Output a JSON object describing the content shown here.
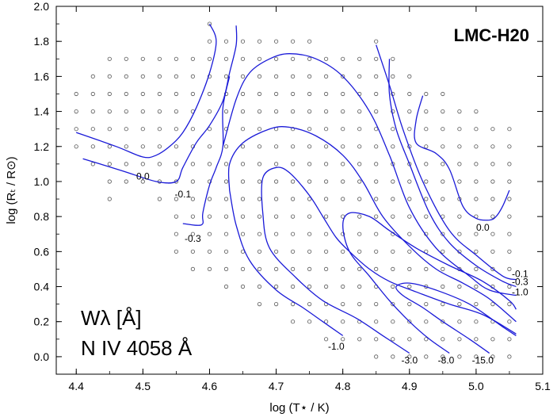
{
  "chart_data": {
    "type": "line",
    "title": "LMC-H20",
    "xlabel": "log (T⋆ / K)",
    "ylabel": "log (Rₜ / R⊙)",
    "xlim": [
      4.37,
      5.1
    ],
    "ylim": [
      -0.1,
      2.0
    ],
    "x_ticks": [
      "4.4",
      "4.5",
      "4.6",
      "4.7",
      "4.8",
      "4.9",
      "5.0",
      "5.1"
    ],
    "y_ticks": [
      "0.0",
      "0.2",
      "0.4",
      "0.6",
      "0.8",
      "1.0",
      "1.2",
      "1.4",
      "1.6",
      "1.8",
      "2.0"
    ],
    "grid": false,
    "annotation": {
      "line1": "Wλ [Å]",
      "line2": "N IV 4058 Å"
    },
    "contours": [
      {
        "label": "0.0",
        "label_at": [
          4.5,
          1.01
        ],
        "points": [
          [
            4.4,
            1.28
          ],
          [
            4.46,
            1.2
          ],
          [
            4.5,
            1.14
          ],
          [
            4.52,
            1.15
          ],
          [
            4.54,
            1.2
          ],
          [
            4.56,
            1.28
          ],
          [
            4.58,
            1.42
          ],
          [
            4.6,
            1.62
          ],
          [
            4.61,
            1.8
          ],
          [
            4.6,
            1.9
          ]
        ]
      },
      {
        "label": "0.0",
        "label_at": [
          5.01,
          0.72
        ],
        "points": [
          [
            4.92,
            1.49
          ],
          [
            4.91,
            1.35
          ],
          [
            4.91,
            1.22
          ],
          [
            4.94,
            1.16
          ],
          [
            4.96,
            1.07
          ],
          [
            4.98,
            0.86
          ],
          [
            5.0,
            0.79
          ],
          [
            5.02,
            0.78
          ],
          [
            5.03,
            0.8
          ],
          [
            5.04,
            0.86
          ],
          [
            5.05,
            0.95
          ]
        ]
      },
      {
        "label": "-0.1",
        "label_at": [
          4.56,
          0.91
        ],
        "points": [
          [
            4.41,
            1.13
          ],
          [
            4.47,
            1.06
          ],
          [
            4.52,
            1.0
          ],
          [
            4.55,
            1.0
          ],
          [
            4.56,
            1.08
          ],
          [
            4.58,
            1.22
          ],
          [
            4.6,
            1.32
          ],
          [
            4.62,
            1.46
          ],
          [
            4.63,
            1.62
          ],
          [
            4.64,
            1.78
          ],
          [
            4.64,
            1.89
          ]
        ]
      },
      {
        "label": "-0.3",
        "label_at": [
          4.575,
          0.655
        ],
        "points": [
          [
            4.56,
            0.76
          ],
          [
            4.58,
            0.75
          ],
          [
            4.59,
            0.76
          ],
          [
            4.59,
            0.82
          ],
          [
            4.6,
            0.98
          ],
          [
            4.61,
            1.08
          ],
          [
            4.62,
            1.2
          ],
          [
            4.62,
            1.42
          ],
          [
            4.63,
            1.6
          ]
        ]
      },
      {
        "label": "-0.1",
        "label_at": [
          5.066,
          0.455
        ],
        "points": [
          [
            4.85,
            1.78
          ],
          [
            4.87,
            1.55
          ],
          [
            4.89,
            1.3
          ],
          [
            4.92,
            1.0
          ],
          [
            4.96,
            0.72
          ],
          [
            5.0,
            0.58
          ],
          [
            5.04,
            0.46
          ],
          [
            5.06,
            0.44
          ]
        ]
      },
      {
        "label": "-0.3",
        "label_at": [
          5.066,
          0.41
        ],
        "points": [
          [
            4.87,
            1.7
          ],
          [
            4.87,
            1.5
          ],
          [
            4.88,
            1.3
          ],
          [
            4.9,
            1.1
          ],
          [
            4.93,
            0.82
          ],
          [
            4.96,
            0.65
          ],
          [
            5.0,
            0.52
          ],
          [
            5.04,
            0.43
          ],
          [
            5.06,
            0.4
          ]
        ]
      },
      {
        "label": "-1.0",
        "label_at": [
          5.066,
          0.35
        ],
        "points": [
          [
            4.62,
            1.2
          ],
          [
            4.64,
            1.47
          ],
          [
            4.66,
            1.62
          ],
          [
            4.69,
            1.7
          ],
          [
            4.72,
            1.73
          ],
          [
            4.76,
            1.7
          ],
          [
            4.8,
            1.6
          ],
          [
            4.84,
            1.4
          ],
          [
            4.87,
            1.15
          ],
          [
            4.9,
            0.85
          ],
          [
            4.94,
            0.62
          ],
          [
            4.99,
            0.46
          ],
          [
            5.02,
            0.38
          ],
          [
            5.06,
            0.35
          ]
        ]
      },
      {
        "label": "-1.0",
        "label_at": [
          4.79,
          0.04
        ],
        "points": [
          [
            4.63,
            0.95
          ],
          [
            4.63,
            1.1
          ],
          [
            4.65,
            1.22
          ],
          [
            4.69,
            1.3
          ],
          [
            4.72,
            1.31
          ],
          [
            4.76,
            1.26
          ],
          [
            4.8,
            1.15
          ],
          [
            4.83,
            1.0
          ],
          [
            4.86,
            0.8
          ],
          [
            4.9,
            0.63
          ],
          [
            4.94,
            0.5
          ],
          [
            4.98,
            0.42
          ],
          [
            5.02,
            0.33
          ],
          [
            5.06,
            0.2
          ]
        ]
      },
      {
        "label": "-1.0",
        "label_at": [
          4.79,
          0.04
        ],
        "points": [
          [
            4.63,
            0.95
          ],
          [
            4.64,
            0.75
          ],
          [
            4.66,
            0.55
          ],
          [
            4.7,
            0.38
          ],
          [
            4.74,
            0.28
          ],
          [
            4.77,
            0.2
          ],
          [
            4.8,
            0.12
          ]
        ]
      },
      {
        "label": "-3.0",
        "label_at": [
          4.9,
          -0.04
        ],
        "points": [
          [
            4.9,
            0.02
          ],
          [
            4.86,
            0.12
          ],
          [
            4.82,
            0.22
          ],
          [
            4.77,
            0.32
          ],
          [
            4.73,
            0.45
          ],
          [
            4.69,
            0.62
          ],
          [
            4.68,
            0.82
          ],
          [
            4.68,
            1.02
          ],
          [
            4.7,
            1.08
          ],
          [
            4.72,
            1.05
          ],
          [
            4.75,
            0.92
          ],
          [
            4.77,
            0.8
          ],
          [
            4.79,
            0.68
          ],
          [
            4.81,
            0.6
          ],
          [
            4.84,
            0.5
          ],
          [
            4.87,
            0.43
          ],
          [
            4.91,
            0.37
          ],
          [
            4.96,
            0.3
          ],
          [
            5.01,
            0.24
          ],
          [
            5.06,
            0.13
          ]
        ]
      },
      {
        "label": "-8.0",
        "label_at": [
          4.955,
          -0.04
        ],
        "points": [
          [
            4.96,
            0.02
          ],
          [
            4.93,
            0.1
          ],
          [
            4.9,
            0.2
          ],
          [
            4.87,
            0.32
          ],
          [
            4.84,
            0.46
          ],
          [
            4.81,
            0.6
          ],
          [
            4.8,
            0.75
          ],
          [
            4.81,
            0.82
          ],
          [
            4.84,
            0.8
          ],
          [
            4.87,
            0.72
          ],
          [
            4.91,
            0.62
          ],
          [
            4.96,
            0.52
          ],
          [
            5.01,
            0.43
          ],
          [
            5.05,
            0.32
          ],
          [
            5.06,
            0.27
          ]
        ]
      },
      {
        "label": "-15.0",
        "label_at": [
          5.01,
          -0.04
        ],
        "points": [
          [
            5.02,
            0.02
          ],
          [
            4.99,
            0.1
          ],
          [
            4.95,
            0.2
          ],
          [
            4.92,
            0.28
          ],
          [
            4.89,
            0.35
          ],
          [
            4.88,
            0.4
          ],
          [
            4.9,
            0.42
          ],
          [
            4.94,
            0.38
          ],
          [
            4.99,
            0.3
          ],
          [
            5.04,
            0.17
          ],
          [
            5.06,
            0.12
          ]
        ]
      }
    ],
    "model_grid": [
      {
        "x": 4.4,
        "y": [
          1.2,
          1.3,
          1.4,
          1.5
        ]
      },
      {
        "x": 4.425,
        "y": [
          1.1,
          1.2,
          1.3,
          1.4,
          1.5,
          1.6
        ]
      },
      {
        "x": 4.45,
        "y": [
          0.9,
          1.0,
          1.1,
          1.2,
          1.3,
          1.4,
          1.5,
          1.6,
          1.7
        ]
      },
      {
        "x": 4.475,
        "y": [
          1.0,
          1.1,
          1.2,
          1.3,
          1.4,
          1.5,
          1.6,
          1.7
        ]
      },
      {
        "x": 4.5,
        "y": [
          1.0,
          1.1,
          1.2,
          1.3,
          1.4,
          1.5,
          1.6,
          1.7
        ]
      },
      {
        "x": 4.525,
        "y": [
          0.9,
          1.0,
          1.1,
          1.2,
          1.3,
          1.4,
          1.5,
          1.6,
          1.7
        ]
      },
      {
        "x": 4.55,
        "y": [
          0.6,
          0.7,
          0.8,
          0.9,
          1.0,
          1.1,
          1.2,
          1.3,
          1.4,
          1.5,
          1.6,
          1.7
        ]
      },
      {
        "x": 4.575,
        "y": [
          0.5,
          0.6,
          0.7,
          0.8,
          0.9,
          1.0,
          1.1,
          1.2,
          1.3,
          1.4,
          1.5,
          1.6,
          1.7
        ]
      },
      {
        "x": 4.6,
        "y": [
          0.5,
          0.6,
          0.7,
          0.8,
          0.9,
          1.0,
          1.1,
          1.2,
          1.3,
          1.4,
          1.5,
          1.6,
          1.7,
          1.8,
          1.9
        ]
      },
      {
        "x": 4.625,
        "y": [
          0.4,
          0.5,
          0.6,
          0.7,
          0.8,
          0.9,
          1.0,
          1.1,
          1.2,
          1.3,
          1.4,
          1.5,
          1.6,
          1.7,
          1.8
        ]
      },
      {
        "x": 4.65,
        "y": [
          0.4,
          0.5,
          0.6,
          0.7,
          0.8,
          0.9,
          1.0,
          1.1,
          1.2,
          1.3,
          1.4,
          1.5,
          1.6,
          1.7,
          1.8
        ]
      },
      {
        "x": 4.675,
        "y": [
          0.3,
          0.4,
          0.5,
          0.6,
          0.7,
          0.8,
          0.9,
          1.0,
          1.1,
          1.2,
          1.3,
          1.4,
          1.5,
          1.6,
          1.7,
          1.8
        ]
      },
      {
        "x": 4.7,
        "y": [
          0.3,
          0.4,
          0.5,
          0.6,
          0.7,
          0.8,
          0.9,
          1.0,
          1.1,
          1.2,
          1.3,
          1.4,
          1.5,
          1.6,
          1.7,
          1.8
        ]
      },
      {
        "x": 4.725,
        "y": [
          0.2,
          0.3,
          0.4,
          0.5,
          0.6,
          0.7,
          0.8,
          0.9,
          1.0,
          1.1,
          1.2,
          1.3,
          1.4,
          1.5,
          1.6,
          1.7,
          1.8
        ]
      },
      {
        "x": 4.75,
        "y": [
          0.2,
          0.3,
          0.4,
          0.5,
          0.6,
          0.7,
          0.8,
          0.9,
          1.0,
          1.1,
          1.2,
          1.3,
          1.4,
          1.5,
          1.6,
          1.7,
          1.8
        ]
      },
      {
        "x": 4.775,
        "y": [
          0.1,
          0.2,
          0.3,
          0.4,
          0.5,
          0.6,
          0.7,
          0.8,
          0.9,
          1.0,
          1.1,
          1.2,
          1.3,
          1.4,
          1.5,
          1.6,
          1.7
        ]
      },
      {
        "x": 4.8,
        "y": [
          0.1,
          0.2,
          0.3,
          0.4,
          0.5,
          0.6,
          0.7,
          0.8,
          0.9,
          1.0,
          1.1,
          1.2,
          1.3,
          1.4,
          1.5,
          1.6,
          1.7
        ]
      },
      {
        "x": 4.825,
        "y": [
          0.1,
          0.2,
          0.3,
          0.4,
          0.5,
          0.6,
          0.7,
          0.8,
          0.9,
          1.0,
          1.1,
          1.2,
          1.3,
          1.4,
          1.5,
          1.6,
          1.7
        ]
      },
      {
        "x": 4.85,
        "y": [
          0.0,
          0.1,
          0.2,
          0.3,
          0.4,
          0.5,
          0.6,
          0.7,
          0.8,
          0.9,
          1.0,
          1.1,
          1.2,
          1.3,
          1.4,
          1.5,
          1.6,
          1.7,
          1.8
        ]
      },
      {
        "x": 4.875,
        "y": [
          0.0,
          0.1,
          0.2,
          0.3,
          0.4,
          0.5,
          0.6,
          0.7,
          0.8,
          0.9,
          1.0,
          1.1,
          1.2,
          1.3,
          1.4,
          1.5,
          1.6,
          1.7
        ]
      },
      {
        "x": 4.9,
        "y": [
          0.0,
          0.1,
          0.2,
          0.3,
          0.4,
          0.5,
          0.6,
          0.7,
          0.8,
          0.9,
          1.0,
          1.1,
          1.2,
          1.3,
          1.4,
          1.5,
          1.6
        ]
      },
      {
        "x": 4.925,
        "y": [
          0.0,
          0.1,
          0.2,
          0.3,
          0.4,
          0.5,
          0.6,
          0.7,
          0.8,
          0.9,
          1.0,
          1.1,
          1.2,
          1.3,
          1.4,
          1.5
        ]
      },
      {
        "x": 4.95,
        "y": [
          0.0,
          0.1,
          0.2,
          0.3,
          0.4,
          0.5,
          0.6,
          0.7,
          0.8,
          0.9,
          1.0,
          1.1,
          1.2,
          1.3,
          1.4,
          1.5
        ]
      },
      {
        "x": 4.975,
        "y": [
          0.0,
          0.1,
          0.2,
          0.3,
          0.4,
          0.5,
          0.6,
          0.7,
          0.8,
          0.9,
          1.0,
          1.1,
          1.2,
          1.3,
          1.4
        ]
      },
      {
        "x": 5.0,
        "y": [
          0.0,
          0.1,
          0.2,
          0.3,
          0.4,
          0.5,
          0.6,
          0.7,
          0.8,
          0.9,
          1.0,
          1.1,
          1.2,
          1.3,
          1.4
        ]
      },
      {
        "x": 5.025,
        "y": [
          0.0,
          0.1,
          0.2,
          0.3,
          0.4,
          0.5,
          0.6,
          0.7,
          0.8,
          0.9,
          1.0,
          1.1,
          1.2,
          1.3
        ]
      },
      {
        "x": 5.05,
        "y": [
          0.0,
          0.1,
          0.2,
          0.3,
          0.4,
          0.5,
          0.6,
          0.7,
          0.8,
          0.9,
          1.0,
          1.1,
          1.2,
          1.3
        ]
      }
    ],
    "colors": {
      "contour": "#1a1ad8",
      "marker": "#555555",
      "axis": "#000000"
    }
  }
}
